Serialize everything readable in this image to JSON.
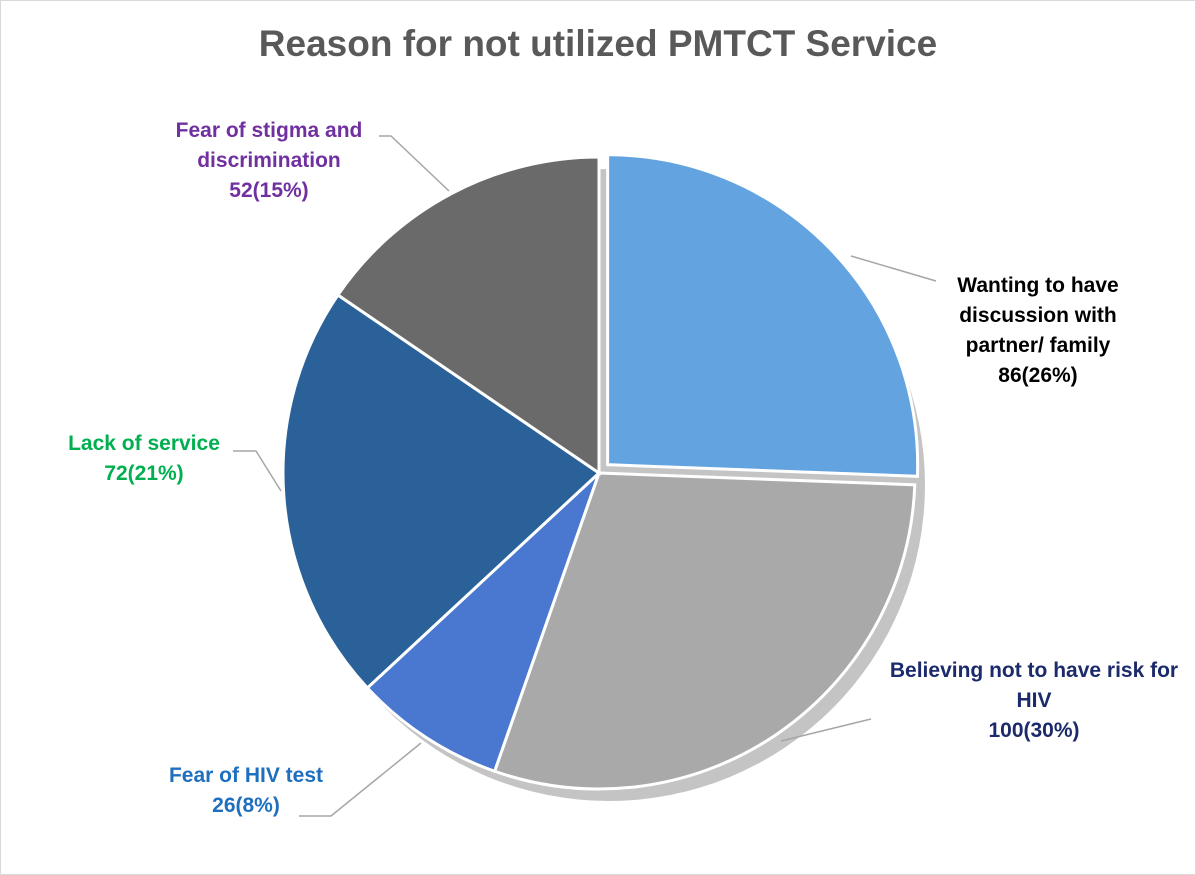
{
  "chart_data": {
    "type": "pie",
    "title": "Reason for not utilized PMTCT Service",
    "categories": [
      "Wanting to have discussion with partner/ family",
      "Believing not to have risk for HIV",
      "Fear of HIV test",
      "Lack of service",
      "Fear of stigma and discrimination"
    ],
    "values": [
      86,
      100,
      26,
      72,
      52
    ],
    "value_labels": [
      "86(26%)",
      "100(30%)",
      "26(8%)",
      "72(21%)",
      "52(15%)"
    ],
    "colors": [
      "#62a3e0",
      "#a9a9a9",
      "#4a78d0",
      "#2a6199",
      "#6a6a6a"
    ],
    "label_colors": [
      "#000000",
      "#1b2a6b",
      "#1f6fbf",
      "#00b050",
      "#7030a0"
    ]
  }
}
